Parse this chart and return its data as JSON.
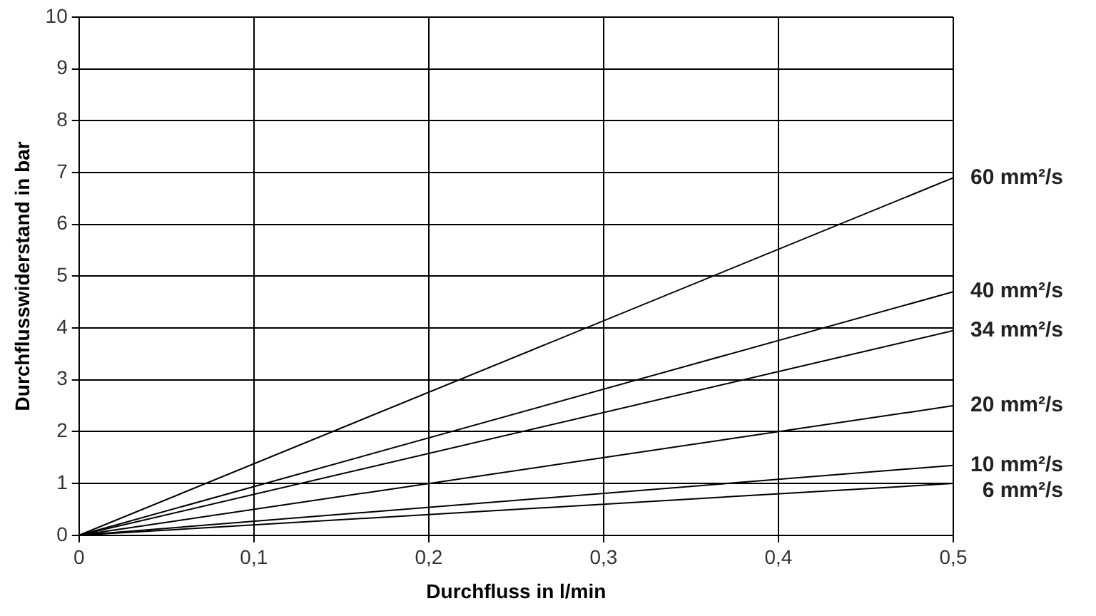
{
  "chart_data": {
    "type": "line",
    "xlabel": "Durchfluss in l/min",
    "ylabel": "Durchflusswiderstand in bar",
    "x": [
      0,
      0.5
    ],
    "series": [
      {
        "name": "60 mm²/s",
        "color": "#000000",
        "values": [
          0,
          6.9
        ]
      },
      {
        "name": "40 mm²/s",
        "color": "#000000",
        "values": [
          0,
          4.7
        ]
      },
      {
        "name": "34 mm²/s",
        "color": "#000000",
        "values": [
          0,
          3.95
        ]
      },
      {
        "name": "20 mm²/s",
        "color": "#000000",
        "values": [
          0,
          2.5
        ]
      },
      {
        "name": "10 mm²/s",
        "color": "#000000",
        "values": [
          0,
          1.35
        ]
      },
      {
        "name": "6 mm²/s",
        "color": "#000000",
        "values": [
          0,
          1.0
        ]
      }
    ],
    "xlim": [
      0,
      0.5
    ],
    "ylim": [
      0,
      10
    ],
    "xticks": [
      0,
      {
        "value": 0.1,
        "label": "0,1"
      },
      {
        "value": 0.2,
        "label": "0,2"
      },
      {
        "value": 0.3,
        "label": "0,3"
      },
      {
        "value": 0.4,
        "label": "0,4"
      },
      {
        "value": 0.5,
        "label": "0,5"
      }
    ],
    "yticks": [
      0,
      1,
      2,
      3,
      4,
      5,
      6,
      7,
      8,
      9,
      10
    ],
    "grid": true,
    "legend": false,
    "marker": "none",
    "line_style": "solid"
  }
}
